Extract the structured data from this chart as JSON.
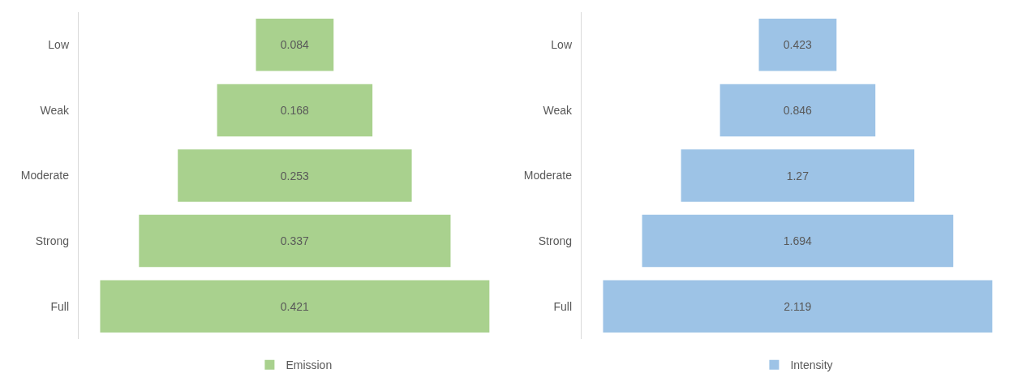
{
  "chart_data": [
    {
      "type": "other",
      "categories": [
        "Low",
        "Weak",
        "Moderate",
        "Strong",
        "Full"
      ],
      "series": [
        {
          "name": "Emission",
          "color": "#a9d18e",
          "values": [
            0.084,
            0.168,
            0.253,
            0.337,
            0.421
          ]
        }
      ],
      "data_labels": true,
      "legend": "bottom"
    },
    {
      "type": "other",
      "categories": [
        "Low",
        "Weak",
        "Moderate",
        "Strong",
        "Full"
      ],
      "series": [
        {
          "name": "Intensity",
          "color": "#9dc3e6",
          "values": [
            0.423,
            0.846,
            1.27,
            1.694,
            2.119
          ]
        }
      ],
      "data_labels": true,
      "legend": "bottom"
    }
  ]
}
